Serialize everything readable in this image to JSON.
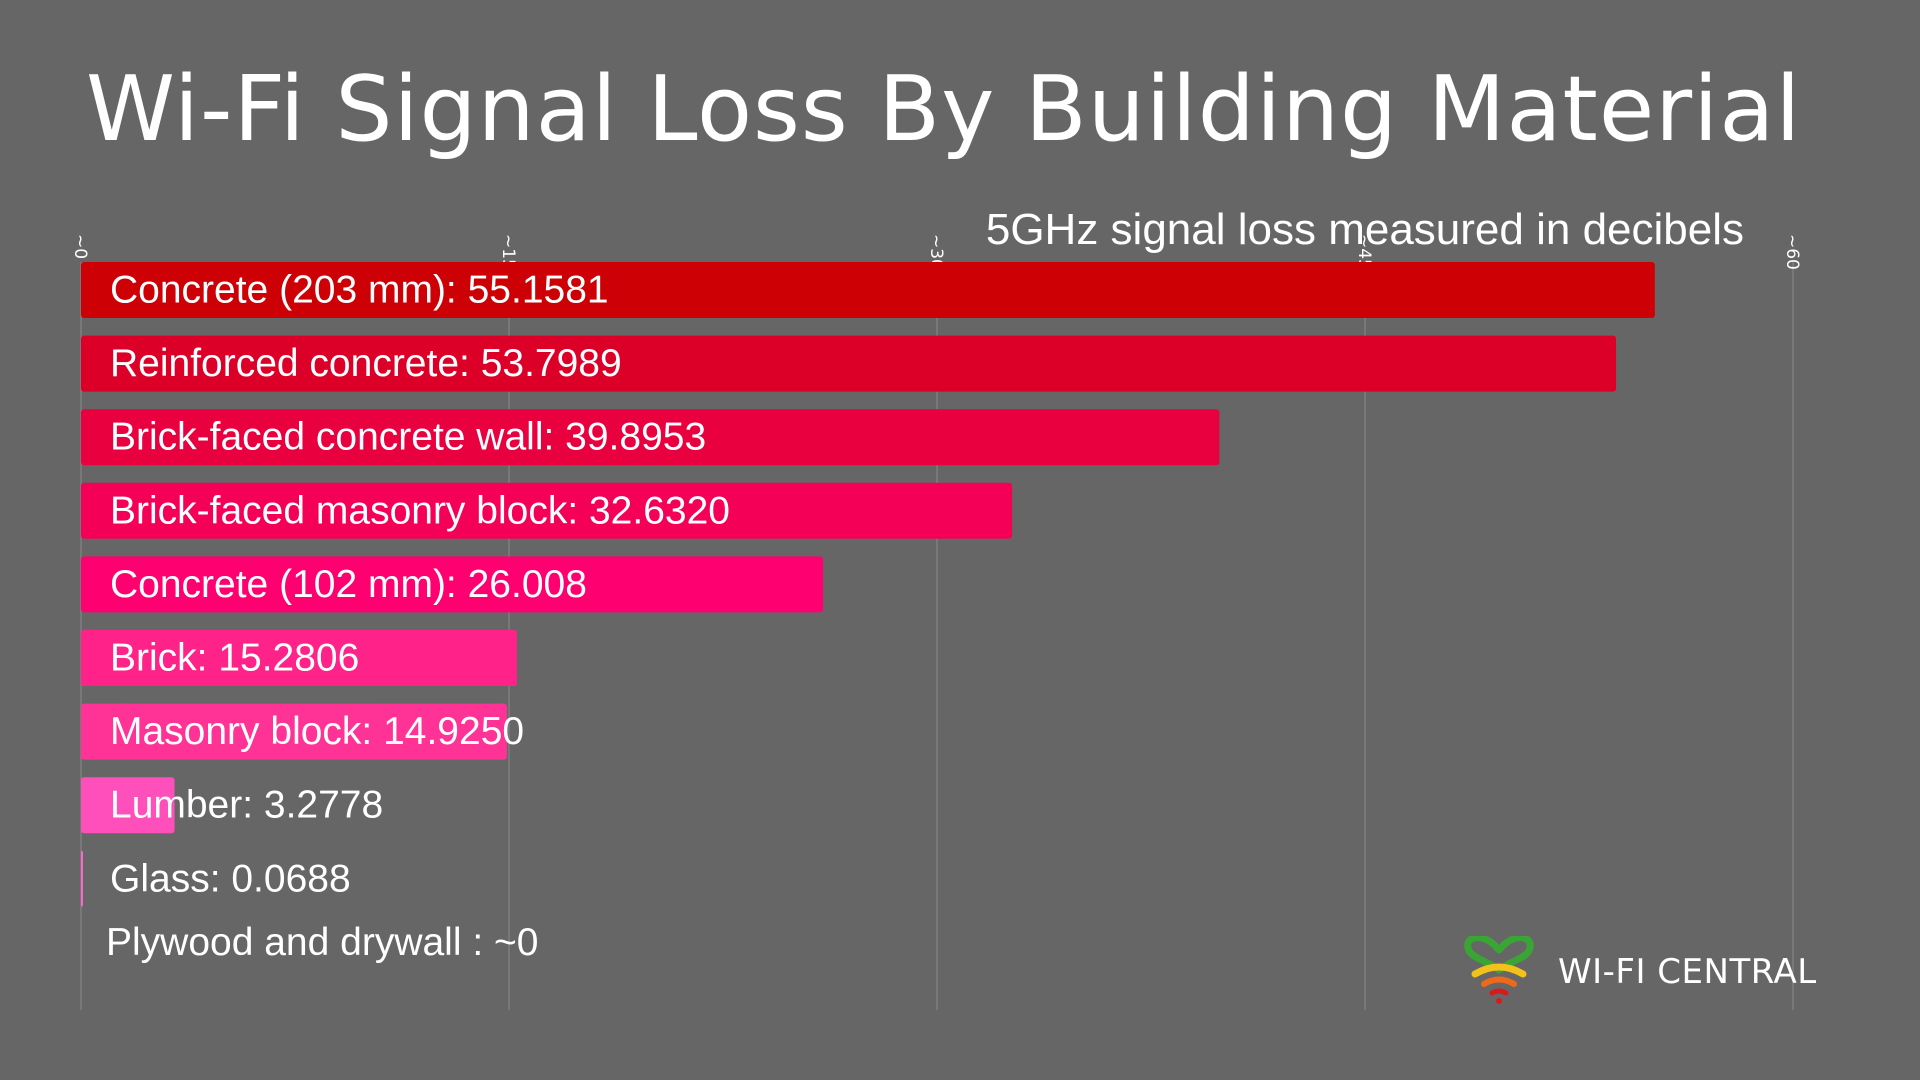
{
  "title": "Wi-Fi Signal Loss By Building Material",
  "subtitle": "5GHz signal loss measured in decibels",
  "brand": {
    "name": "WI-FI CENTRAL",
    "icon": "heart-wifi-icon"
  },
  "chart_data": {
    "type": "bar",
    "orientation": "horizontal",
    "xlim": [
      0,
      60
    ],
    "grid": true,
    "tick_labels": [
      "~0",
      "~15",
      "~30",
      "~45",
      "~60"
    ],
    "tick_values": [
      0,
      15,
      30,
      45,
      60
    ],
    "categories": [
      "Concrete (203 mm): 55.1581",
      "Reinforced concrete: 53.7989",
      "Brick-faced concrete wall: 39.8953",
      "Brick-faced masonry block: 32.6320",
      "Concrete (102 mm): 26.008",
      "Brick: 15.2806",
      "Masonry block: 14.9250",
      "Lumber: 3.2778",
      "Glass: 0.0688",
      "Plywood and drywall : ~0"
    ],
    "values": [
      55.1581,
      53.7989,
      39.8953,
      32.632,
      26.008,
      15.2806,
      14.925,
      3.2778,
      0.0688,
      0
    ],
    "colors": [
      "#cc0005",
      "#dc0028",
      "#e8003f",
      "#f40057",
      "#ff0070",
      "#ff2288",
      "#ff3396",
      "#ff4fbb",
      "#ff66cc",
      "#ff66cc"
    ]
  }
}
